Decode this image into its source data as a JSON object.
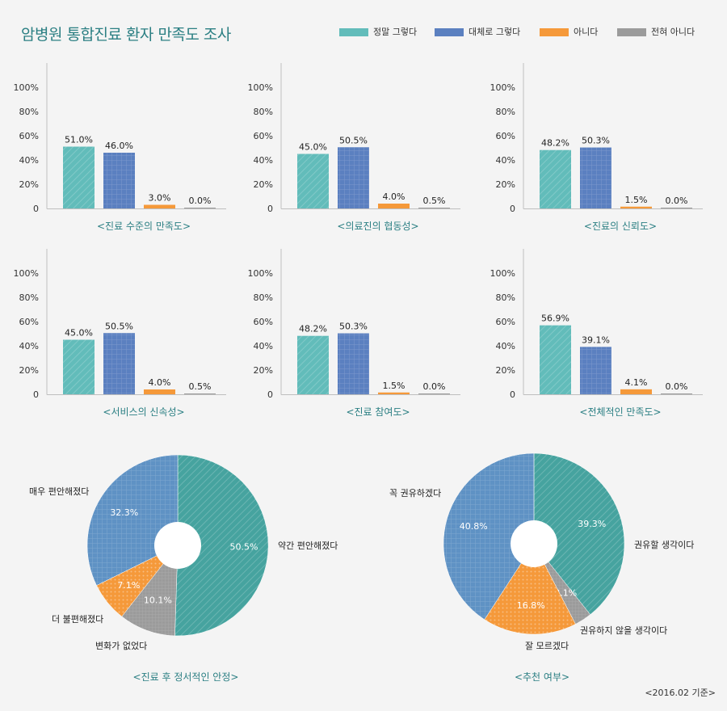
{
  "header": {
    "title": "암병원 통합진료 환자 만족도 조사",
    "footnote": "<2016.02 기준>"
  },
  "legend": [
    {
      "label": "정말 그렇다",
      "color": "#62bcba"
    },
    {
      "label": "대체로 그렇다",
      "color": "#5b80c0"
    },
    {
      "label": "아니다",
      "color": "#f5993a"
    },
    {
      "label": "전혀 아니다",
      "color": "#9b9b9b"
    }
  ],
  "chart_data": [
    {
      "type": "bar",
      "title": "<진료 수준의 만족도>",
      "categories": [
        "정말 그렇다",
        "대체로 그렇다",
        "아니다",
        "전혀 아니다"
      ],
      "values": [
        51.0,
        46.0,
        3.0,
        0.0
      ],
      "value_labels": [
        "51.0%",
        "46.0%",
        "3.0%",
        "0.0%"
      ],
      "y_ticks": [
        "0",
        "20%",
        "40%",
        "60%",
        "80%",
        "100%"
      ],
      "ylim": [
        0,
        100
      ]
    },
    {
      "type": "bar",
      "title": "<의료진의 협동성>",
      "categories": [
        "정말 그렇다",
        "대체로 그렇다",
        "아니다",
        "전혀 아니다"
      ],
      "values": [
        45.0,
        50.5,
        4.0,
        0.5
      ],
      "value_labels": [
        "45.0%",
        "50.5%",
        "4.0%",
        "0.5%"
      ],
      "y_ticks": [
        "0",
        "20%",
        "40%",
        "60%",
        "80%",
        "100%"
      ],
      "ylim": [
        0,
        100
      ]
    },
    {
      "type": "bar",
      "title": "<진료의 신뢰도>",
      "categories": [
        "정말 그렇다",
        "대체로 그렇다",
        "아니다",
        "전혀 아니다"
      ],
      "values": [
        48.2,
        50.3,
        1.5,
        0.0
      ],
      "value_labels": [
        "48.2%",
        "50.3%",
        "1.5%",
        "0.0%"
      ],
      "y_ticks": [
        "0",
        "20%",
        "40%",
        "60%",
        "80%",
        "100%"
      ],
      "ylim": [
        0,
        100
      ]
    },
    {
      "type": "bar",
      "title": "<서비스의 신속성>",
      "categories": [
        "정말 그렇다",
        "대체로 그렇다",
        "아니다",
        "전혀 아니다"
      ],
      "values": [
        45.0,
        50.5,
        4.0,
        0.5
      ],
      "value_labels": [
        "45.0%",
        "50.5%",
        "4.0%",
        "0.5%"
      ],
      "y_ticks": [
        "0",
        "20%",
        "40%",
        "60%",
        "80%",
        "100%"
      ],
      "ylim": [
        0,
        100
      ]
    },
    {
      "type": "bar",
      "title": "<진료 참여도>",
      "categories": [
        "정말 그렇다",
        "대체로 그렇다",
        "아니다",
        "전혀 아니다"
      ],
      "values": [
        48.2,
        50.3,
        1.5,
        0.0
      ],
      "value_labels": [
        "48.2%",
        "50.3%",
        "1.5%",
        "0.0%"
      ],
      "y_ticks": [
        "0",
        "20%",
        "40%",
        "60%",
        "80%",
        "100%"
      ],
      "ylim": [
        0,
        100
      ]
    },
    {
      "type": "bar",
      "title": "<전체적인 만족도>",
      "categories": [
        "정말 그렇다",
        "대체로 그렇다",
        "아니다",
        "전혀 아니다"
      ],
      "values": [
        56.9,
        39.1,
        4.1,
        0.0
      ],
      "value_labels": [
        "56.9%",
        "39.1%",
        "4.1%",
        "0.0%"
      ],
      "y_ticks": [
        "0",
        "20%",
        "40%",
        "60%",
        "80%",
        "100%"
      ],
      "ylim": [
        0,
        100
      ]
    },
    {
      "type": "pie",
      "title": "<진료 후 정서적인 안정>",
      "slices": [
        {
          "label": "약간 편안해졌다",
          "value": 50.5,
          "value_label": "50.5%",
          "color": "#46a39f"
        },
        {
          "label": "변화가 없었다",
          "value": 10.1,
          "value_label": "10.1%",
          "color": "#9b9b9b"
        },
        {
          "label": "더 불편해졌다",
          "value": 7.1,
          "value_label": "7.1%",
          "color": "#f5993a"
        },
        {
          "label": "매우 편안해졌다",
          "value": 32.3,
          "value_label": "32.3%",
          "color": "#5f92c4"
        }
      ]
    },
    {
      "type": "pie",
      "title": "<추천 여부>",
      "slices": [
        {
          "label": "권유할 생각이다",
          "value": 39.3,
          "value_label": "39.3%",
          "color": "#46a39f"
        },
        {
          "label": "권유하지 않을 생각이다",
          "value": 3.1,
          "value_label": "3.1%",
          "color": "#9b9b9b"
        },
        {
          "label": "잘 모르겠다",
          "value": 16.8,
          "value_label": "16.8%",
          "color": "#f5993a"
        },
        {
          "label": "꼭 권유하겠다",
          "value": 40.8,
          "value_label": "40.8%",
          "color": "#5f92c4"
        }
      ]
    }
  ]
}
